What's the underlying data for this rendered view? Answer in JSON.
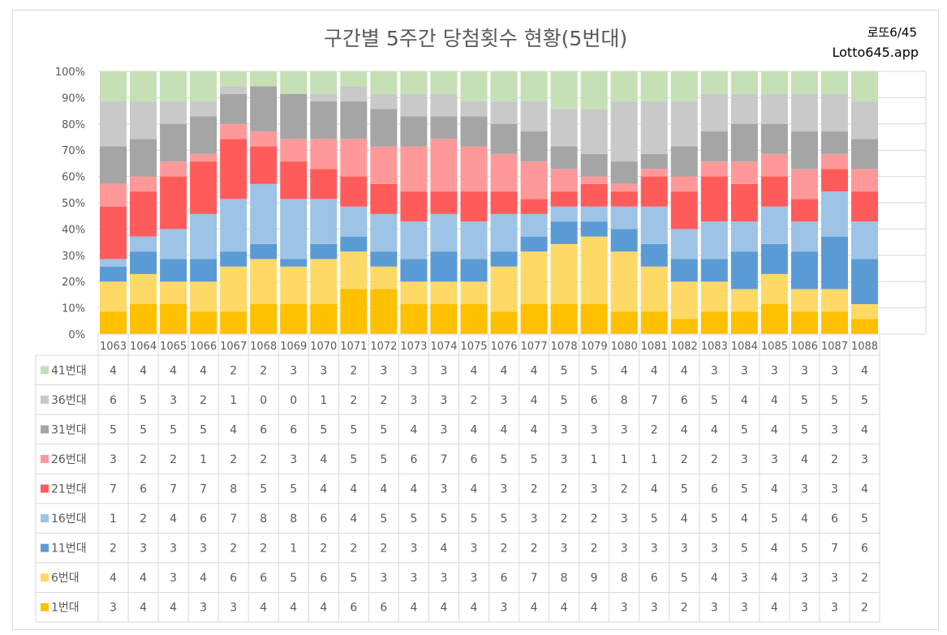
{
  "chart_data": {
    "type": "bar",
    "stacked": "percent",
    "title": "구간별 5주간 당첨횟수 현황(5번대)",
    "brand_line1": "로또6/45",
    "brand_line2": "Lotto645.app",
    "y_tick_labels": [
      "0%",
      "10%",
      "20%",
      "30%",
      "40%",
      "50%",
      "60%",
      "70%",
      "80%",
      "90%",
      "100%"
    ],
    "ylim": [
      0,
      100
    ],
    "grid": true,
    "categories": [
      "1063",
      "1064",
      "1065",
      "1066",
      "1067",
      "1068",
      "1069",
      "1070",
      "1071",
      "1072",
      "1073",
      "1074",
      "1075",
      "1076",
      "1077",
      "1078",
      "1079",
      "1080",
      "1081",
      "1082",
      "1083",
      "1084",
      "1085",
      "1086",
      "1087",
      "1088"
    ],
    "series": [
      {
        "name": "1번대",
        "color": "#FFC000",
        "values": [
          3,
          4,
          4,
          3,
          3,
          4,
          4,
          4,
          6,
          6,
          4,
          4,
          4,
          3,
          4,
          4,
          4,
          3,
          3,
          2,
          3,
          3,
          4,
          3,
          3,
          2
        ]
      },
      {
        "name": "6번대",
        "color": "#FFD966",
        "values": [
          4,
          4,
          3,
          4,
          6,
          6,
          5,
          6,
          5,
          3,
          3,
          3,
          3,
          6,
          7,
          8,
          9,
          8,
          6,
          5,
          4,
          3,
          4,
          3,
          3,
          2
        ]
      },
      {
        "name": "11번대",
        "color": "#5B9BD5",
        "values": [
          2,
          3,
          3,
          3,
          2,
          2,
          1,
          2,
          2,
          2,
          3,
          4,
          3,
          2,
          2,
          3,
          2,
          3,
          3,
          3,
          3,
          5,
          4,
          5,
          7,
          6
        ]
      },
      {
        "name": "16번대",
        "color": "#9DC3E6",
        "values": [
          1,
          2,
          4,
          6,
          7,
          8,
          8,
          6,
          4,
          5,
          5,
          5,
          5,
          5,
          3,
          2,
          2,
          3,
          5,
          4,
          5,
          4,
          5,
          4,
          6,
          5
        ]
      },
      {
        "name": "21번대",
        "color": "#FF5B5B",
        "values": [
          7,
          6,
          7,
          7,
          8,
          5,
          5,
          4,
          4,
          4,
          4,
          3,
          4,
          3,
          2,
          2,
          3,
          2,
          4,
          5,
          6,
          5,
          4,
          3,
          3,
          4
        ]
      },
      {
        "name": "26번대",
        "color": "#FF9999",
        "values": [
          3,
          2,
          2,
          1,
          2,
          2,
          3,
          4,
          5,
          5,
          6,
          7,
          6,
          5,
          5,
          3,
          1,
          1,
          1,
          2,
          2,
          3,
          3,
          4,
          2,
          3
        ]
      },
      {
        "name": "31번대",
        "color": "#A5A5A5",
        "values": [
          5,
          5,
          5,
          5,
          4,
          6,
          6,
          5,
          5,
          5,
          4,
          3,
          4,
          4,
          4,
          3,
          3,
          3,
          2,
          4,
          4,
          5,
          4,
          5,
          3,
          4
        ]
      },
      {
        "name": "36번대",
        "color": "#C9C9C9",
        "values": [
          6,
          5,
          3,
          2,
          1,
          0,
          0,
          1,
          2,
          2,
          3,
          3,
          2,
          3,
          4,
          5,
          6,
          8,
          7,
          6,
          5,
          4,
          4,
          5,
          5,
          5
        ]
      },
      {
        "name": "41번대",
        "color": "#C5E0B4",
        "values": [
          4,
          4,
          4,
          4,
          2,
          2,
          3,
          3,
          2,
          3,
          3,
          3,
          4,
          4,
          4,
          5,
          5,
          4,
          4,
          4,
          3,
          3,
          3,
          3,
          3,
          4
        ]
      }
    ]
  }
}
